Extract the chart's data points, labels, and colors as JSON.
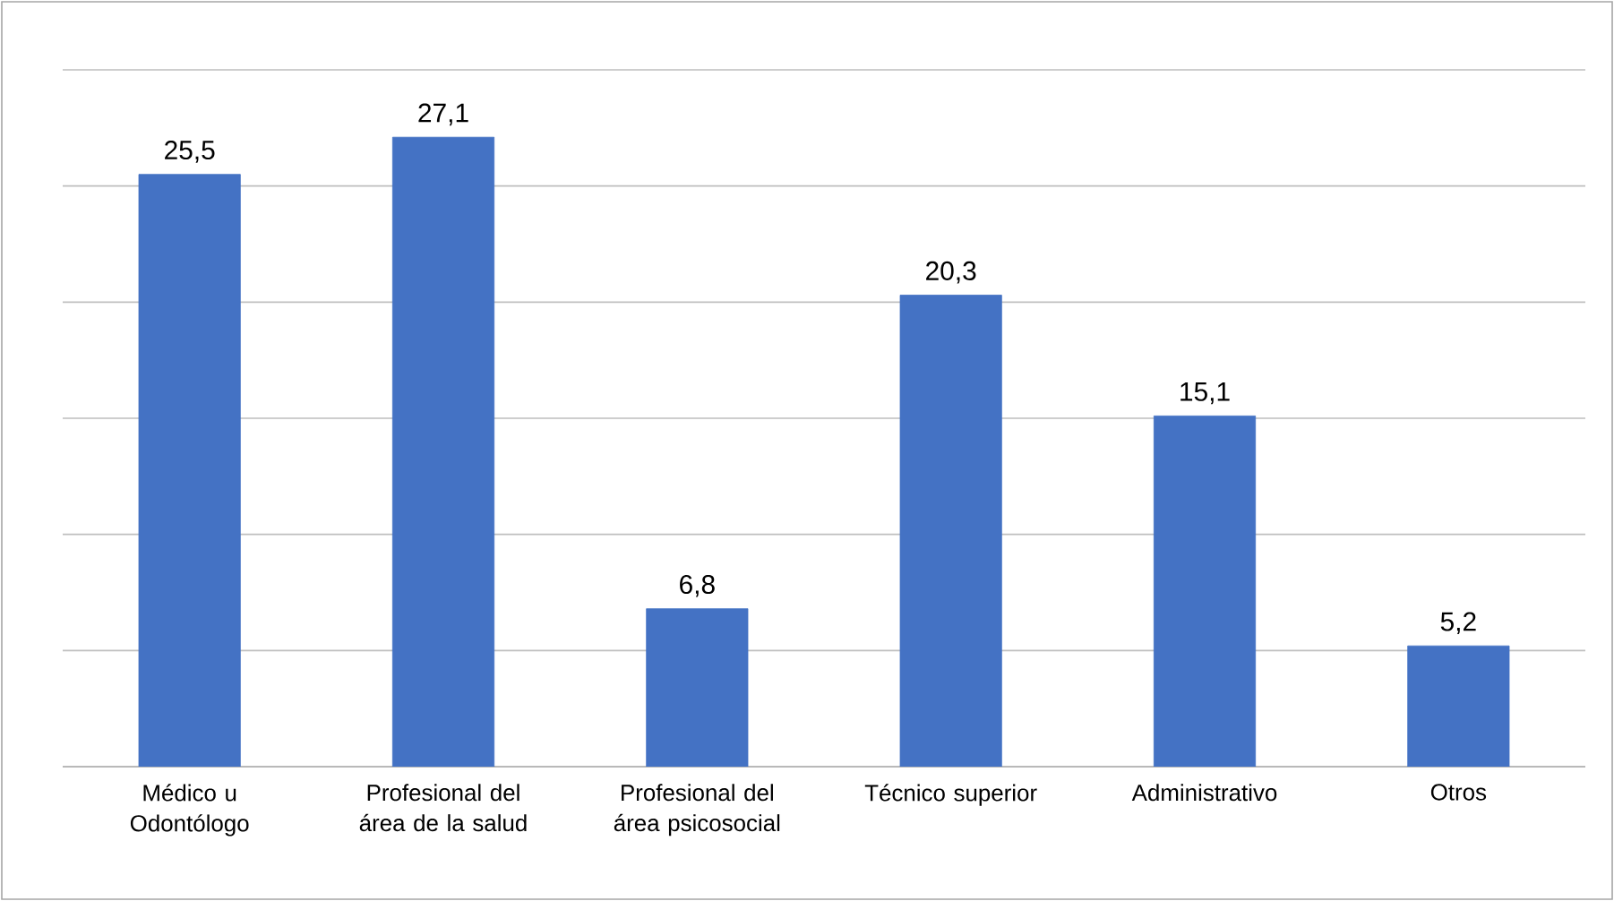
{
  "chart_data": {
    "type": "bar",
    "categories": [
      "Médico u Odontólogo",
      "Profesional del área de la salud",
      "Profesional del área psicosocial",
      "Técnico superior",
      "Administrativo",
      "Otros"
    ],
    "values": [
      25.5,
      27.1,
      6.8,
      20.3,
      15.1,
      5.2
    ],
    "value_labels": [
      "25,5",
      "27,1",
      "6,8",
      "20,3",
      "15,1",
      "5,2"
    ],
    "color": "#4472c4",
    "ylim": [
      0,
      30
    ],
    "yticks": [
      {
        "value": 0,
        "label": null
      },
      {
        "value": 5,
        "label": null
      },
      {
        "value": 10,
        "label": null
      },
      {
        "value": 15,
        "label": null
      },
      {
        "value": 20,
        "label": null
      },
      {
        "value": 25,
        "label": null
      },
      {
        "value": 30,
        "label": null
      }
    ],
    "tick_labels": "x",
    "grid": "y"
  }
}
